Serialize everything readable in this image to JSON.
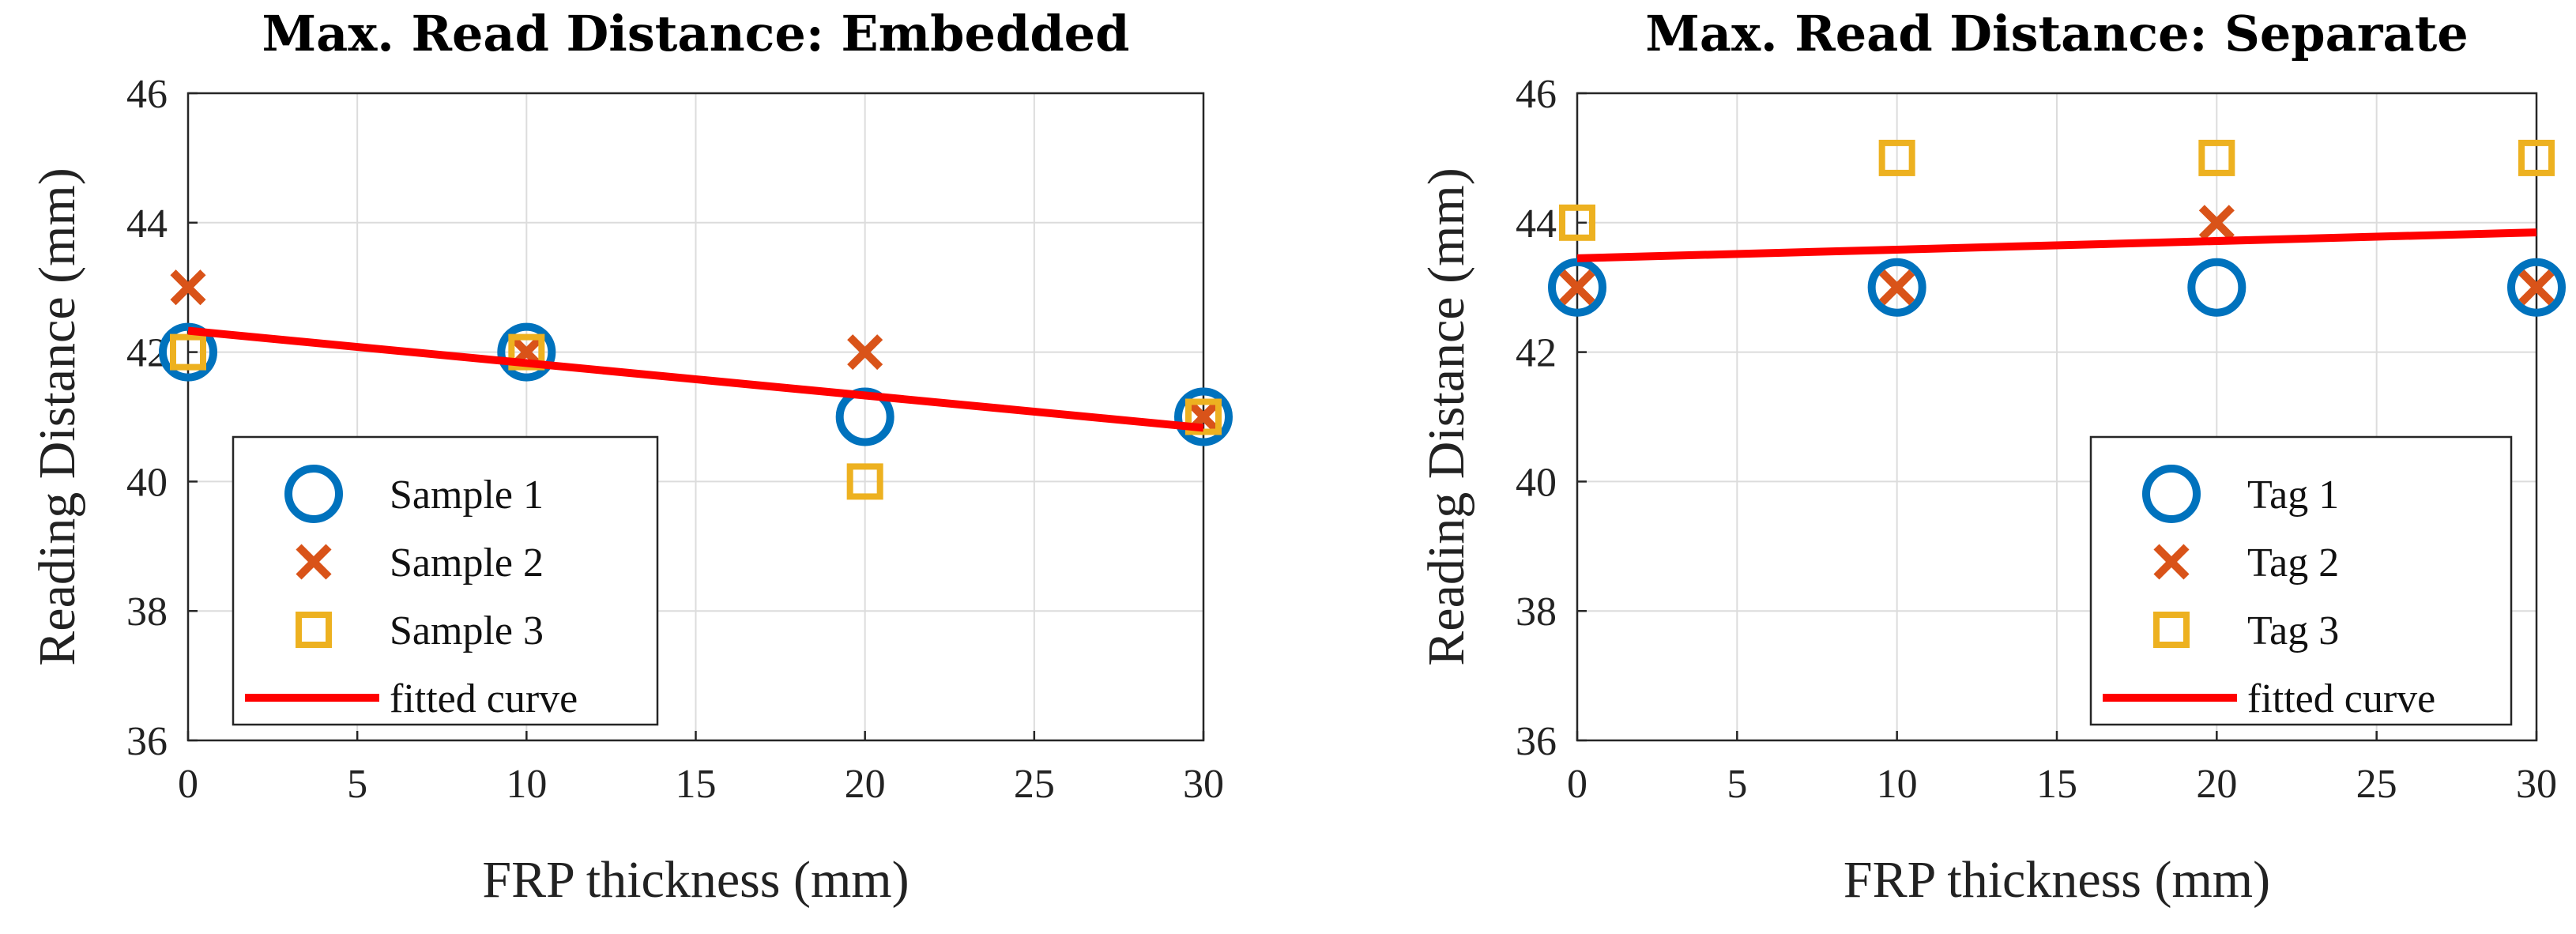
{
  "chart_data": [
    {
      "type": "scatter",
      "title": "Max. Read Distance: Embedded",
      "xlabel": "FRP thickness (mm)",
      "ylabel": "Reading Distance (mm)",
      "xlim": [
        0,
        30
      ],
      "ylim": [
        36,
        46
      ],
      "xticks": [
        0,
        5,
        10,
        15,
        20,
        25,
        30
      ],
      "yticks": [
        36,
        38,
        40,
        42,
        44,
        46
      ],
      "grid": true,
      "legend_position": "bottom-left",
      "series": [
        {
          "name": "Sample 1",
          "marker": "circle",
          "color": "#0072BD",
          "x": [
            0,
            10,
            20,
            30
          ],
          "y": [
            42,
            42,
            41,
            41
          ]
        },
        {
          "name": "Sample 2",
          "marker": "x",
          "color": "#D95319",
          "x": [
            0,
            10,
            20,
            30
          ],
          "y": [
            43,
            42,
            42,
            41
          ]
        },
        {
          "name": "Sample 3",
          "marker": "square",
          "color": "#EDB120",
          "x": [
            0,
            10,
            20,
            30
          ],
          "y": [
            42,
            42,
            40,
            41
          ]
        }
      ],
      "fit": {
        "name": "fitted curve",
        "color": "#FF0000",
        "x": [
          0,
          30
        ],
        "y": [
          42.33,
          40.83
        ]
      }
    },
    {
      "type": "scatter",
      "title": "Max. Read Distance: Separate",
      "xlabel": "FRP thickness (mm)",
      "ylabel": "Reading Distance (mm)",
      "xlim": [
        0,
        30
      ],
      "ylim": [
        36,
        46
      ],
      "xticks": [
        0,
        5,
        10,
        15,
        20,
        25,
        30
      ],
      "yticks": [
        36,
        38,
        40,
        42,
        44,
        46
      ],
      "grid": true,
      "legend_position": "bottom-right",
      "series": [
        {
          "name": "Tag 1",
          "marker": "circle",
          "color": "#0072BD",
          "x": [
            0,
            10,
            20,
            30
          ],
          "y": [
            43,
            43,
            43,
            43
          ]
        },
        {
          "name": "Tag 2",
          "marker": "x",
          "color": "#D95319",
          "x": [
            0,
            10,
            20,
            30
          ],
          "y": [
            43,
            43,
            44,
            43
          ]
        },
        {
          "name": "Tag 3",
          "marker": "square",
          "color": "#EDB120",
          "x": [
            0,
            10,
            20,
            30
          ],
          "y": [
            44,
            45,
            45,
            45
          ]
        }
      ],
      "fit": {
        "name": "fitted curve",
        "color": "#FF0000",
        "x": [
          0,
          30
        ],
        "y": [
          43.45,
          43.85
        ]
      }
    }
  ]
}
